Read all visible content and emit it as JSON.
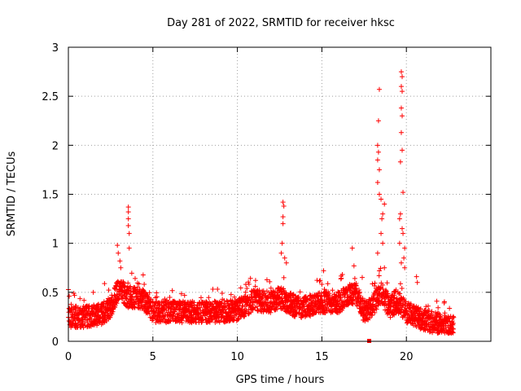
{
  "chart_data": {
    "type": "scatter",
    "title": "Day 281 of 2022, SRMTID for receiver hksc",
    "xlabel": "GPS time / hours",
    "ylabel": "SRMTID / TECUs",
    "xlim": [
      0,
      25
    ],
    "ylim": [
      0,
      3
    ],
    "xticks": [
      "0",
      "5",
      "10",
      "15",
      "20"
    ],
    "xtick_values": [
      0,
      5,
      10,
      15,
      20
    ],
    "yticks": [
      "0",
      "0.5",
      "1",
      "1.5",
      "2",
      "2.5",
      "3"
    ],
    "ytick_values": [
      0,
      0.5,
      1,
      1.5,
      2,
      2.5,
      3
    ],
    "grid": true,
    "marker": "plus",
    "color": "#ff0000",
    "series": [
      {
        "name": "SRMTID",
        "baseline": [
          [
            0,
            0.25
          ],
          [
            1,
            0.25
          ],
          [
            2,
            0.28
          ],
          [
            2.5,
            0.35
          ],
          [
            3.0,
            0.55
          ],
          [
            3.5,
            0.45
          ],
          [
            4,
            0.45
          ],
          [
            4.5,
            0.42
          ],
          [
            5,
            0.3
          ],
          [
            6,
            0.3
          ],
          [
            7,
            0.3
          ],
          [
            8,
            0.3
          ],
          [
            9,
            0.3
          ],
          [
            10,
            0.32
          ],
          [
            11,
            0.42
          ],
          [
            12,
            0.4
          ],
          [
            12.5,
            0.45
          ],
          [
            13,
            0.4
          ],
          [
            13.5,
            0.35
          ],
          [
            14,
            0.35
          ],
          [
            15,
            0.4
          ],
          [
            16,
            0.4
          ],
          [
            16.5,
            0.45
          ],
          [
            17,
            0.5
          ],
          [
            17.5,
            0.3
          ],
          [
            18,
            0.35
          ],
          [
            18.5,
            0.5
          ],
          [
            19,
            0.35
          ],
          [
            19.5,
            0.4
          ],
          [
            20,
            0.3
          ],
          [
            21,
            0.22
          ],
          [
            22,
            0.18
          ],
          [
            22.8,
            0.15
          ]
        ],
        "peaks": [
          [
            2.9,
            0.98
          ],
          [
            2.95,
            0.9
          ],
          [
            3.05,
            0.82
          ],
          [
            3.1,
            0.75
          ],
          [
            3.55,
            1.37
          ],
          [
            3.55,
            1.32
          ],
          [
            3.55,
            1.25
          ],
          [
            3.55,
            1.18
          ],
          [
            3.6,
            1.1
          ],
          [
            3.6,
            0.95
          ],
          [
            12.7,
            1.42
          ],
          [
            12.75,
            1.38
          ],
          [
            12.7,
            1.27
          ],
          [
            12.7,
            1.2
          ],
          [
            12.65,
            1.0
          ],
          [
            12.6,
            0.9
          ],
          [
            12.8,
            0.85
          ],
          [
            12.9,
            0.8
          ],
          [
            14.9,
            0.62
          ],
          [
            15.1,
            0.72
          ],
          [
            16.9,
            0.77
          ],
          [
            16.8,
            0.95
          ],
          [
            18.4,
            2.57
          ],
          [
            18.35,
            2.25
          ],
          [
            18.3,
            2.0
          ],
          [
            18.35,
            1.93
          ],
          [
            18.3,
            1.85
          ],
          [
            18.4,
            1.75
          ],
          [
            18.3,
            1.62
          ],
          [
            18.4,
            1.5
          ],
          [
            18.5,
            1.45
          ],
          [
            18.6,
            1.3
          ],
          [
            18.55,
            1.25
          ],
          [
            18.7,
            1.4
          ],
          [
            18.5,
            1.1
          ],
          [
            18.6,
            1.0
          ],
          [
            18.3,
            0.9
          ],
          [
            18.7,
            0.75
          ],
          [
            18.4,
            0.72
          ],
          [
            19.7,
            2.75
          ],
          [
            19.75,
            2.7
          ],
          [
            19.7,
            2.6
          ],
          [
            19.75,
            2.55
          ],
          [
            19.7,
            2.38
          ],
          [
            19.75,
            2.3
          ],
          [
            19.7,
            2.13
          ],
          [
            19.75,
            1.95
          ],
          [
            19.65,
            1.83
          ],
          [
            19.8,
            1.52
          ],
          [
            19.65,
            1.3
          ],
          [
            19.6,
            1.25
          ],
          [
            19.75,
            1.15
          ],
          [
            19.8,
            1.1
          ],
          [
            19.6,
            1.0
          ],
          [
            19.9,
            0.95
          ],
          [
            19.85,
            0.85
          ],
          [
            19.7,
            0.8
          ],
          [
            19.9,
            0.75
          ],
          [
            20.6,
            0.66
          ],
          [
            20.65,
            0.6
          ]
        ],
        "outlier": [
          17.8,
          0.0
        ]
      }
    ]
  }
}
